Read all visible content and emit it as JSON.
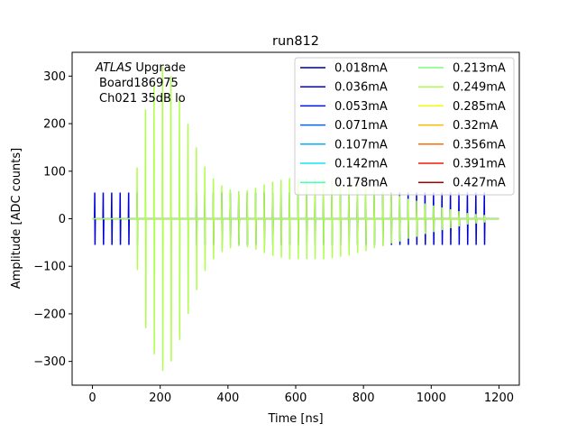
{
  "chart_data": {
    "type": "line",
    "title": "run812",
    "xlabel": "Time [ns]",
    "ylabel": "Amplitude [ADC counts]",
    "xlim": [
      -60,
      1260
    ],
    "ylim": [
      -350,
      350
    ],
    "xticks": [
      0,
      200,
      400,
      600,
      800,
      1000,
      1200
    ],
    "yticks": [
      -300,
      -200,
      -100,
      0,
      100,
      200,
      300
    ],
    "grid": false,
    "legend_position": "top-right",
    "legend_columns": 2,
    "annotation": {
      "experiment": "ATLAS",
      "line1_rest": " Upgrade",
      "line2": "Board186975",
      "line3": "Ch021 35dB lo"
    },
    "pulse_period_ns": 25,
    "pulse_width_ns": 3,
    "series": [
      {
        "name": "0.018mA",
        "color": "#00007f",
        "amplitudes": []
      },
      {
        "name": "0.036mA",
        "color": "#0000dd",
        "amplitudes": [
          55,
          55,
          55,
          55,
          55,
          55,
          0,
          0,
          0,
          0,
          0,
          0,
          55,
          55,
          55,
          55,
          55,
          55,
          55,
          55,
          55,
          55,
          55,
          55,
          55,
          55,
          55,
          55,
          55,
          55,
          55,
          55,
          55,
          55,
          55,
          55,
          55,
          55,
          55,
          55,
          55,
          55,
          55,
          55,
          55,
          55,
          55
        ]
      },
      {
        "name": "0.053mA",
        "color": "#0012ff",
        "amplitudes": []
      },
      {
        "name": "0.071mA",
        "color": "#0064ff",
        "amplitudes": []
      },
      {
        "name": "0.107mA",
        "color": "#00b0ff",
        "amplitudes": []
      },
      {
        "name": "0.142mA",
        "color": "#0ee8f0",
        "amplitudes": []
      },
      {
        "name": "0.178mA",
        "color": "#42ffbd",
        "amplitudes": []
      },
      {
        "name": "0.213mA",
        "color": "#7dff7a",
        "amplitudes": []
      },
      {
        "name": "0.249mA",
        "color": "#adff49",
        "amplitudes": [
          0,
          0,
          0,
          0,
          0,
          108,
          230,
          285,
          320,
          300,
          255,
          200,
          150,
          110,
          85,
          70,
          62,
          58,
          60,
          65,
          72,
          78,
          82,
          85,
          85,
          85,
          85,
          85,
          83,
          80,
          77,
          72,
          68,
          62,
          58,
          52,
          48,
          42,
          38,
          32,
          28,
          24,
          20,
          16,
          12,
          10,
          8
        ]
      },
      {
        "name": "0.285mA",
        "color": "#f1fc06",
        "amplitudes": []
      },
      {
        "name": "0.32mA",
        "color": "#ffb900",
        "amplitudes": []
      },
      {
        "name": "0.356mA",
        "color": "#ff6d00",
        "amplitudes": []
      },
      {
        "name": "0.391mA",
        "color": "#f11d00",
        "amplitudes": []
      },
      {
        "name": "0.427mA",
        "color": "#a80000",
        "amplitudes": []
      }
    ]
  }
}
